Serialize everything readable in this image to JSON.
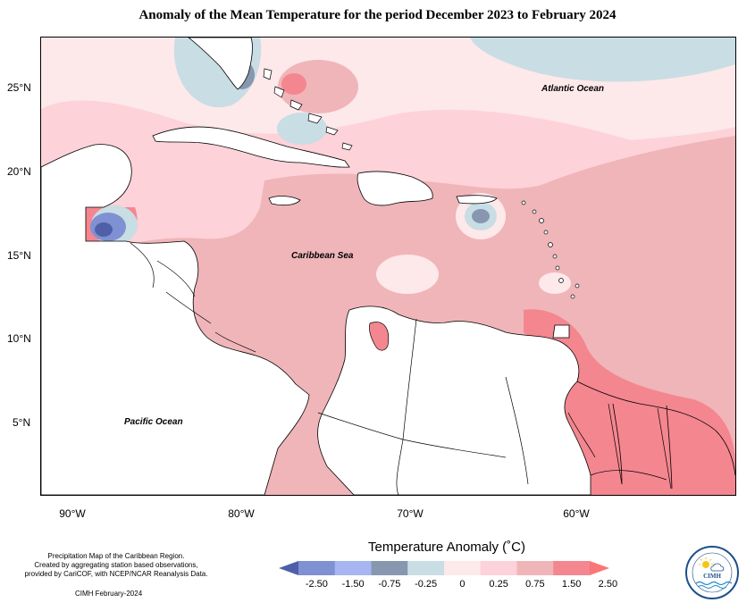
{
  "title": "Anomaly of the Mean Temperature for the period December 2023 to February 2024",
  "map": {
    "latitude_labels": [
      "25°N",
      "20°N",
      "15°N",
      "10°N",
      "5°N"
    ],
    "longitude_labels": [
      "90°W",
      "80°W",
      "70°W",
      "60°W"
    ],
    "region_labels": {
      "atlantic": "Atlantic Ocean",
      "caribbean": "Caribbean Sea",
      "pacific": "Pacific Ocean"
    }
  },
  "legend": {
    "title": "Temperature Anomaly (˚C)",
    "tick_labels": [
      "-2.50",
      "-1.50",
      "-0.75",
      "-0.25",
      "0",
      "0.25",
      "0.75",
      "1.50",
      "2.50"
    ],
    "colors": [
      "#4f60a8",
      "#7f91d2",
      "#a7b6f0",
      "#8797b0",
      "#c8dde4",
      "#fde8ea",
      "#fdd2d8",
      "#f0b5b9",
      "#f4868f",
      "#f97777"
    ]
  },
  "notes": {
    "line1": "Precipitation Map of the Caribbean Region.",
    "line2": "Created by aggregating station based observations,",
    "line3": "provided by CariCOF, with NCEP/NCAR Reanalysis Data.",
    "date": "CIMH February-2024"
  },
  "logo": {
    "icon": "cimh-logo-icon",
    "text": "CIMH"
  }
}
